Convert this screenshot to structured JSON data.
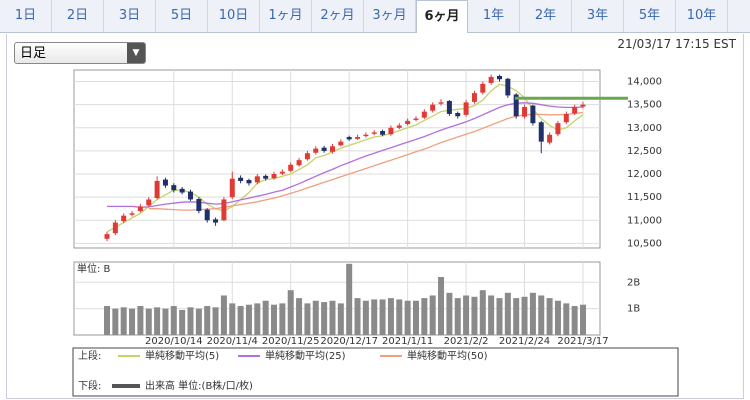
{
  "tabs": [
    "1日",
    "2日",
    "3日",
    "5日",
    "10日",
    "1ヶ月",
    "2ヶ月",
    "3ヶ月",
    "6ヶ月",
    "1年",
    "2年",
    "3年",
    "5年",
    "10年"
  ],
  "selected_tab": 8,
  "dropdown": "日足",
  "timestamp": "21/03/17 17:15 EST",
  "chart_data": {
    "type": "candlestick",
    "categories": [
      null,
      null,
      null,
      null,
      null,
      null,
      null,
      null,
      "2020/10/14",
      null,
      null,
      null,
      null,
      null,
      null,
      "2020/11/4",
      null,
      null,
      null,
      null,
      null,
      null,
      "2020/11/25",
      null,
      null,
      null,
      null,
      null,
      null,
      "2020/12/17",
      null,
      null,
      null,
      null,
      null,
      null,
      "2021/1/11",
      null,
      null,
      null,
      null,
      null,
      null,
      "2021/2/2",
      null,
      null,
      null,
      null,
      null,
      null,
      "2021/2/24",
      null,
      null,
      null,
      null,
      null,
      null,
      "2021/3/17"
    ],
    "open": [
      10600,
      10720,
      10980,
      11120,
      11200,
      11320,
      11480,
      11880,
      11760,
      11680,
      11620,
      11460,
      11230,
      11020,
      11000,
      11500,
      11920,
      11870,
      11820,
      11960,
      11910,
      12010,
      12070,
      12190,
      12320,
      12460,
      12570,
      12480,
      12620,
      12800,
      12760,
      12820,
      12870,
      12930,
      12860,
      13000,
      13080,
      13170,
      13220,
      13370,
      13520,
      13580,
      13320,
      13280,
      13560,
      13760,
      13970,
      14120,
      14060,
      13720,
      13240,
      13480,
      13120,
      12680,
      12860,
      13120,
      13310,
      13460
    ],
    "high": [
      10750,
      11000,
      11150,
      11200,
      11350,
      11500,
      11950,
      11920,
      11800,
      11720,
      11660,
      11500,
      11260,
      11060,
      11500,
      12050,
      11970,
      11900,
      12000,
      11990,
      12050,
      12100,
      12250,
      12350,
      12500,
      12600,
      12610,
      12650,
      12750,
      12830,
      12850,
      12900,
      12950,
      12960,
      13050,
      13100,
      13200,
      13250,
      13400,
      13550,
      13620,
      13600,
      13350,
      13600,
      13800,
      14000,
      14150,
      14150,
      14080,
      13750,
      13500,
      13500,
      13150,
      12900,
      13150,
      13350,
      13500,
      13560
    ],
    "low": [
      10550,
      10680,
      10940,
      11080,
      11170,
      11290,
      11450,
      11700,
      11600,
      11560,
      11420,
      11150,
      10950,
      10880,
      10980,
      11460,
      11800,
      11750,
      11780,
      11860,
      11880,
      11980,
      12040,
      12160,
      12290,
      12420,
      12460,
      12440,
      12600,
      12720,
      12740,
      12790,
      12840,
      12820,
      12830,
      12970,
      13050,
      13140,
      13190,
      13330,
      13480,
      13260,
      13200,
      13240,
      13520,
      13720,
      13930,
      14000,
      13650,
      13200,
      13200,
      13050,
      12450,
      12640,
      12820,
      13080,
      13280,
      13420
    ],
    "close": [
      10700,
      10950,
      11100,
      11150,
      11300,
      11450,
      11850,
      11750,
      11650,
      11600,
      11450,
      11200,
      11000,
      10950,
      11450,
      11900,
      11850,
      11800,
      11950,
      11900,
      12000,
      12050,
      12200,
      12300,
      12450,
      12550,
      12500,
      12600,
      12700,
      12750,
      12800,
      12850,
      12900,
      12850,
      13000,
      13050,
      13150,
      13200,
      13350,
      13500,
      13550,
      13300,
      13250,
      13550,
      13750,
      13950,
      14100,
      14050,
      13700,
      13250,
      13450,
      13100,
      12700,
      12850,
      13100,
      13300,
      13450,
      13500
    ],
    "up_color": "#e03a36",
    "down_color": "#22306a",
    "ylim": [
      10400,
      14250
    ],
    "yticks": [
      {
        "value": 10500,
        "label": "10,500"
      },
      {
        "value": 11000,
        "label": "11,000"
      },
      {
        "value": 11500,
        "label": "11,500"
      },
      {
        "value": 12000,
        "label": "12,000"
      },
      {
        "value": 12500,
        "label": "12,500"
      },
      {
        "value": 13000,
        "label": "13,000"
      },
      {
        "value": 13500,
        "label": "13,500"
      },
      {
        "value": 14000,
        "label": "14,000"
      }
    ],
    "grid": true,
    "level_line": {
      "value": 13640,
      "color": "#6aa84f"
    },
    "upper_label": "上段:",
    "lower_label": "下段:",
    "series": [
      {
        "name": "単純移動平均(5)",
        "color": "#c5d36a",
        "values": [
          10750,
          10850,
          10950,
          11050,
          11150,
          11300,
          11450,
          11550,
          11650,
          11650,
          11600,
          11500,
          11350,
          11250,
          11200,
          11300,
          11450,
          11600,
          11800,
          11880,
          11900,
          11950,
          12000,
          12100,
          12200,
          12350,
          12400,
          12480,
          12560,
          12620,
          12680,
          12740,
          12800,
          12830,
          12880,
          12940,
          13000,
          13060,
          13160,
          13250,
          13350,
          13380,
          13400,
          13420,
          13480,
          13600,
          13800,
          13940,
          13900,
          13800,
          13650,
          13400,
          13200,
          13050,
          12950,
          13000,
          13150,
          13280
        ]
      },
      {
        "name": "単純移動平均(25)",
        "color": "#b36ee0",
        "values": [
          11300,
          11300,
          11300,
          11300,
          11280,
          11290,
          11320,
          11350,
          11370,
          11390,
          11400,
          11390,
          11370,
          11350,
          11360,
          11400,
          11440,
          11480,
          11520,
          11560,
          11610,
          11650,
          11720,
          11790,
          11870,
          11950,
          12030,
          12100,
          12180,
          12250,
          12320,
          12390,
          12450,
          12510,
          12570,
          12630,
          12690,
          12750,
          12810,
          12880,
          12950,
          13010,
          13070,
          13130,
          13200,
          13280,
          13360,
          13440,
          13500,
          13530,
          13540,
          13530,
          13500,
          13470,
          13450,
          13440,
          13440,
          13450
        ]
      },
      {
        "name": "単純移動平均(50)",
        "color": "#f0a080",
        "values": [
          null,
          null,
          null,
          null,
          null,
          11250,
          11250,
          11240,
          11230,
          11220,
          11220,
          11230,
          11240,
          11250,
          11280,
          11310,
          11340,
          11370,
          11400,
          11440,
          11480,
          11530,
          11580,
          11640,
          11700,
          11760,
          11820,
          11880,
          11940,
          12000,
          12060,
          12120,
          12180,
          12240,
          12300,
          12360,
          12420,
          12480,
          12540,
          12610,
          12680,
          12740,
          12800,
          12860,
          12920,
          12990,
          13060,
          13130,
          13200,
          13250,
          13280,
          13290,
          13290,
          13280,
          13280,
          13290,
          13310,
          13330
        ]
      }
    ],
    "volume": {
      "name": "出来高 単位:(B株/口/枚)",
      "unit_label": "単位: B",
      "color": "#8a8a8a",
      "legend_color": "#555555",
      "ylim": [
        0,
        2.77
      ],
      "yticks": [
        {
          "value": 1,
          "label": "1B"
        },
        {
          "value": 2,
          "label": "2B"
        }
      ],
      "values": [
        1.1,
        1.0,
        1.05,
        1.0,
        1.1,
        1.0,
        1.05,
        1.0,
        1.1,
        0.95,
        1.05,
        1.0,
        1.1,
        1.05,
        1.5,
        1.2,
        1.1,
        1.15,
        1.2,
        1.3,
        1.15,
        1.2,
        1.7,
        1.4,
        1.2,
        1.3,
        1.25,
        1.3,
        1.2,
        2.7,
        1.4,
        1.3,
        1.35,
        1.35,
        1.4,
        1.35,
        1.3,
        1.3,
        1.4,
        1.5,
        2.2,
        1.6,
        1.4,
        1.5,
        1.45,
        1.7,
        1.5,
        1.4,
        1.6,
        1.4,
        1.45,
        1.6,
        1.5,
        1.4,
        1.3,
        1.2,
        1.1,
        1.15
      ]
    }
  }
}
